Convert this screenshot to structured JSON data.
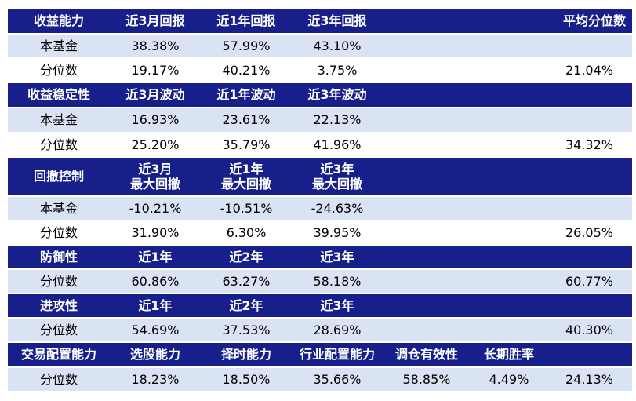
{
  "rows": [
    {
      "kind": "hdr",
      "cells": [
        "收益能力",
        "近3月回报",
        "近1年回报",
        "近3年回报",
        "",
        "",
        "平均分位数"
      ]
    },
    {
      "kind": "light",
      "cells": [
        "本基金",
        "38.38%",
        "57.99%",
        "43.10%",
        "",
        "",
        ""
      ]
    },
    {
      "kind": "white",
      "cells": [
        "分位数",
        "19.17%",
        "40.21%",
        "3.75%",
        "",
        "",
        "21.04%"
      ]
    },
    {
      "kind": "hdr",
      "cells": [
        "收益稳定性",
        "近3月波动",
        "近1年波动",
        "近3年波动",
        "",
        "",
        ""
      ]
    },
    {
      "kind": "light",
      "cells": [
        "本基金",
        "16.93%",
        "23.61%",
        "22.13%",
        "",
        "",
        ""
      ]
    },
    {
      "kind": "white",
      "cells": [
        "分位数",
        "25.20%",
        "35.79%",
        "41.96%",
        "",
        "",
        "34.32%"
      ]
    },
    {
      "kind": "hdr",
      "tall": true,
      "cells": [
        "回撤控制",
        "近3月\n最大回撤",
        "近1年\n最大回撤",
        "近3年\n最大回撤",
        "",
        "",
        ""
      ]
    },
    {
      "kind": "light",
      "cells": [
        "本基金",
        "-10.21%",
        "-10.51%",
        "-24.63%",
        "",
        "",
        ""
      ]
    },
    {
      "kind": "white",
      "cells": [
        "分位数",
        "31.90%",
        "6.30%",
        "39.95%",
        "",
        "",
        "26.05%"
      ]
    },
    {
      "kind": "hdr",
      "cells": [
        "防御性",
        "近1年",
        "近2年",
        "近3年",
        "",
        "",
        ""
      ]
    },
    {
      "kind": "light",
      "cells": [
        "分位数",
        "60.86%",
        "63.27%",
        "58.18%",
        "",
        "",
        "60.77%"
      ]
    },
    {
      "kind": "hdr",
      "cells": [
        "进攻性",
        "近1年",
        "近2年",
        "近3年",
        "",
        "",
        ""
      ]
    },
    {
      "kind": "light",
      "cells": [
        "分位数",
        "54.69%",
        "37.53%",
        "28.69%",
        "",
        "",
        "40.30%"
      ]
    },
    {
      "kind": "hdr",
      "cells": [
        "交易配置能力",
        "选股能力",
        "择时能力",
        "行业配置能力",
        "调仓有效性",
        "长期胜率",
        ""
      ]
    },
    {
      "kind": "light",
      "cells": [
        "分位数",
        "18.23%",
        "18.50%",
        "35.66%",
        "58.85%",
        "4.49%",
        "24.13%"
      ]
    }
  ]
}
